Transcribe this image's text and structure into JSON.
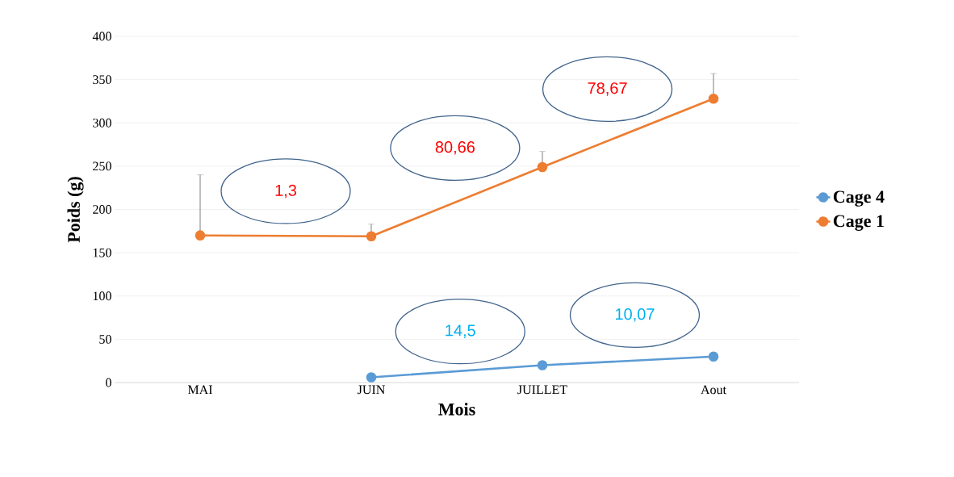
{
  "chart_data": {
    "type": "line",
    "xlabel": "Mois",
    "ylabel": "Poids (g)",
    "categories": [
      "MAI",
      "JUIN",
      "JUILLET",
      "Aout"
    ],
    "series": [
      {
        "name": "Cage 4",
        "color": "#5b9bd5",
        "values": [
          null,
          6,
          20,
          30
        ]
      },
      {
        "name": "Cage 1",
        "color": "#ed7d31",
        "values": [
          170,
          169,
          249,
          328
        ],
        "errors": [
          [
            170,
            240
          ],
          [
            169,
            183
          ],
          [
            249,
            267
          ],
          [
            328,
            357
          ]
        ]
      }
    ],
    "ylim": [
      0,
      400
    ],
    "yticks": [
      0,
      50,
      100,
      150,
      200,
      250,
      300,
      350,
      400
    ],
    "annotations": [
      "1,3",
      "80,66",
      "78,67",
      "14,5",
      "10,07"
    ],
    "grid": "y",
    "legend": "right",
    "marker": "circle",
    "line_style": "solid"
  }
}
